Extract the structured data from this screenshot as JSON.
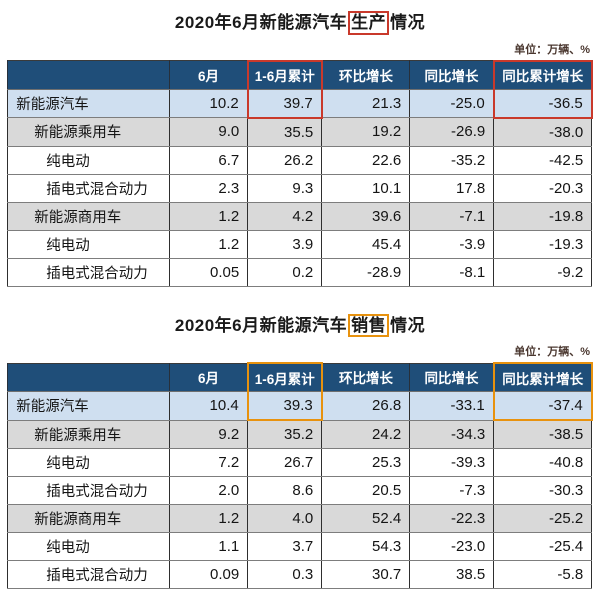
{
  "colors": {
    "header_bg": "#1f4e79",
    "header_text": "#ffffff",
    "row_total_blue": "#cfdff0",
    "row_subtotal_gray": "#d9d9d9",
    "production_box_red": "#c9392b",
    "sales_box_orange": "#e8920e"
  },
  "chart_data": [
    {
      "id": "production",
      "type": "table",
      "title": "2020年6月新能源汽车生产情况",
      "title_prefix": "2020年6月新能源汽车",
      "title_highlight": "生产",
      "title_suffix": "情况",
      "unit_label": "单位：万辆、%",
      "highlight_color": "#c9392b",
      "highlight_columns": [
        1,
        4
      ],
      "columns": [
        "6月",
        "1-6月累计",
        "环比增长",
        "同比增长",
        "同比累计增长"
      ],
      "rows": [
        {
          "label": "新能源汽车",
          "indent": 0,
          "shade": "blue",
          "values": [
            "10.2",
            "39.7",
            "21.3",
            "-25.0",
            "-36.5"
          ]
        },
        {
          "label": "新能源乘用车",
          "indent": 1,
          "shade": "gray",
          "values": [
            "9.0",
            "35.5",
            "19.2",
            "-26.9",
            "-38.0"
          ]
        },
        {
          "label": "纯电动",
          "indent": 2,
          "shade": "white",
          "values": [
            "6.7",
            "26.2",
            "22.6",
            "-35.2",
            "-42.5"
          ]
        },
        {
          "label": "插电式混合动力",
          "indent": 2,
          "shade": "white",
          "values": [
            "2.3",
            "9.3",
            "10.1",
            "17.8",
            "-20.3"
          ]
        },
        {
          "label": "新能源商用车",
          "indent": 1,
          "shade": "gray",
          "values": [
            "1.2",
            "4.2",
            "39.6",
            "-7.1",
            "-19.8"
          ]
        },
        {
          "label": "纯电动",
          "indent": 2,
          "shade": "white",
          "values": [
            "1.2",
            "3.9",
            "45.4",
            "-3.9",
            "-19.3"
          ]
        },
        {
          "label": "插电式混合动力",
          "indent": 2,
          "shade": "white",
          "values": [
            "0.05",
            "0.2",
            "-28.9",
            "-8.1",
            "-9.2"
          ]
        }
      ]
    },
    {
      "id": "sales",
      "type": "table",
      "title": "2020年6月新能源汽车销售情况",
      "title_prefix": "2020年6月新能源汽车",
      "title_highlight": "销售",
      "title_suffix": "情况",
      "unit_label": "单位：万辆、%",
      "highlight_color": "#e8920e",
      "highlight_columns": [
        1,
        4
      ],
      "columns": [
        "6月",
        "1-6月累计",
        "环比增长",
        "同比增长",
        "同比累计增长"
      ],
      "rows": [
        {
          "label": "新能源汽车",
          "indent": 0,
          "shade": "blue",
          "values": [
            "10.4",
            "39.3",
            "26.8",
            "-33.1",
            "-37.4"
          ]
        },
        {
          "label": "新能源乘用车",
          "indent": 1,
          "shade": "gray",
          "values": [
            "9.2",
            "35.2",
            "24.2",
            "-34.3",
            "-38.5"
          ]
        },
        {
          "label": "纯电动",
          "indent": 2,
          "shade": "white",
          "values": [
            "7.2",
            "26.7",
            "25.3",
            "-39.3",
            "-40.8"
          ]
        },
        {
          "label": "插电式混合动力",
          "indent": 2,
          "shade": "white",
          "values": [
            "2.0",
            "8.6",
            "20.5",
            "-7.3",
            "-30.3"
          ]
        },
        {
          "label": "新能源商用车",
          "indent": 1,
          "shade": "gray",
          "values": [
            "1.2",
            "4.0",
            "52.4",
            "-22.3",
            "-25.2"
          ]
        },
        {
          "label": "纯电动",
          "indent": 2,
          "shade": "white",
          "values": [
            "1.1",
            "3.7",
            "54.3",
            "-23.0",
            "-25.4"
          ]
        },
        {
          "label": "插电式混合动力",
          "indent": 2,
          "shade": "white",
          "values": [
            "0.09",
            "0.3",
            "30.7",
            "38.5",
            "-5.8"
          ]
        }
      ]
    }
  ]
}
